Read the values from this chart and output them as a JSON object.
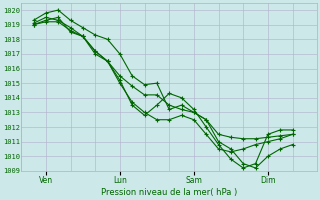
{
  "xlabel": "Pression niveau de la mer( hPa )",
  "bg_color": "#cde8e8",
  "grid_color": "#b0b0cc",
  "line_color": "#006600",
  "ylim": [
    1009,
    1020.5
  ],
  "yticks": [
    1009,
    1010,
    1011,
    1012,
    1013,
    1014,
    1015,
    1016,
    1017,
    1018,
    1019,
    1020
  ],
  "xlim": [
    0,
    12
  ],
  "xtick_positions": [
    1,
    4,
    7,
    10
  ],
  "xtick_labels": [
    "Ven",
    "Lun",
    "Sam",
    "Dim"
  ],
  "minor_xtick_positions": [
    0,
    1,
    2,
    3,
    4,
    5,
    6,
    7,
    8,
    9,
    10,
    11,
    12
  ],
  "line1_x": [
    0.5,
    1.0,
    1.5,
    2.0,
    2.5,
    3.0,
    3.5,
    4.0,
    4.5,
    5.0,
    5.5,
    6.0,
    6.5,
    7.0,
    7.5,
    8.0,
    8.5,
    9.0,
    9.5,
    10.0,
    10.5,
    11.0
  ],
  "line1_y": [
    1019.1,
    1019.5,
    1019.3,
    1018.8,
    1018.2,
    1017.2,
    1016.5,
    1015.5,
    1014.8,
    1014.2,
    1014.2,
    1013.5,
    1013.2,
    1013.0,
    1012.5,
    1011.5,
    1011.3,
    1011.2,
    1011.2,
    1011.3,
    1011.4,
    1011.5
  ],
  "line2_x": [
    0.5,
    1.0,
    1.5,
    2.0,
    2.5,
    3.0,
    3.5,
    4.0,
    4.5,
    5.0,
    5.5,
    6.0,
    6.5,
    7.0,
    7.5,
    8.0,
    8.5,
    9.0,
    9.5,
    10.0,
    10.5,
    11.0
  ],
  "line2_y": [
    1019.3,
    1019.8,
    1020.0,
    1019.3,
    1018.8,
    1018.3,
    1018.0,
    1017.0,
    1015.5,
    1014.9,
    1015.0,
    1013.2,
    1013.5,
    1013.0,
    1012.5,
    1011.0,
    1010.5,
    1009.5,
    1009.2,
    1010.0,
    1010.5,
    1010.8
  ],
  "line3_x": [
    0.5,
    1.0,
    1.5,
    2.0,
    2.5,
    3.0,
    3.5,
    4.0,
    4.5,
    5.0,
    5.5,
    6.0,
    6.5,
    7.0,
    7.5,
    8.0,
    8.5,
    9.0,
    9.5,
    10.0,
    10.5,
    11.0
  ],
  "line3_y": [
    1019.0,
    1019.3,
    1019.5,
    1018.5,
    1018.2,
    1017.0,
    1016.5,
    1015.2,
    1013.5,
    1012.8,
    1013.5,
    1014.3,
    1014.0,
    1013.2,
    1012.0,
    1010.8,
    1009.8,
    1009.2,
    1009.5,
    1011.5,
    1011.8,
    1011.8
  ],
  "line4_x": [
    0.5,
    1.0,
    1.5,
    2.0,
    2.5,
    3.0,
    3.5,
    4.0,
    4.5,
    5.0,
    5.5,
    6.0,
    6.5,
    7.0,
    7.5,
    8.0,
    8.5,
    9.0,
    9.5,
    10.0,
    10.5,
    11.0
  ],
  "line4_y": [
    1019.0,
    1019.2,
    1019.2,
    1018.6,
    1018.2,
    1017.2,
    1016.5,
    1015.0,
    1013.7,
    1013.0,
    1012.5,
    1012.5,
    1012.8,
    1012.5,
    1011.5,
    1010.5,
    1010.3,
    1010.5,
    1010.8,
    1011.0,
    1011.2,
    1011.5
  ]
}
